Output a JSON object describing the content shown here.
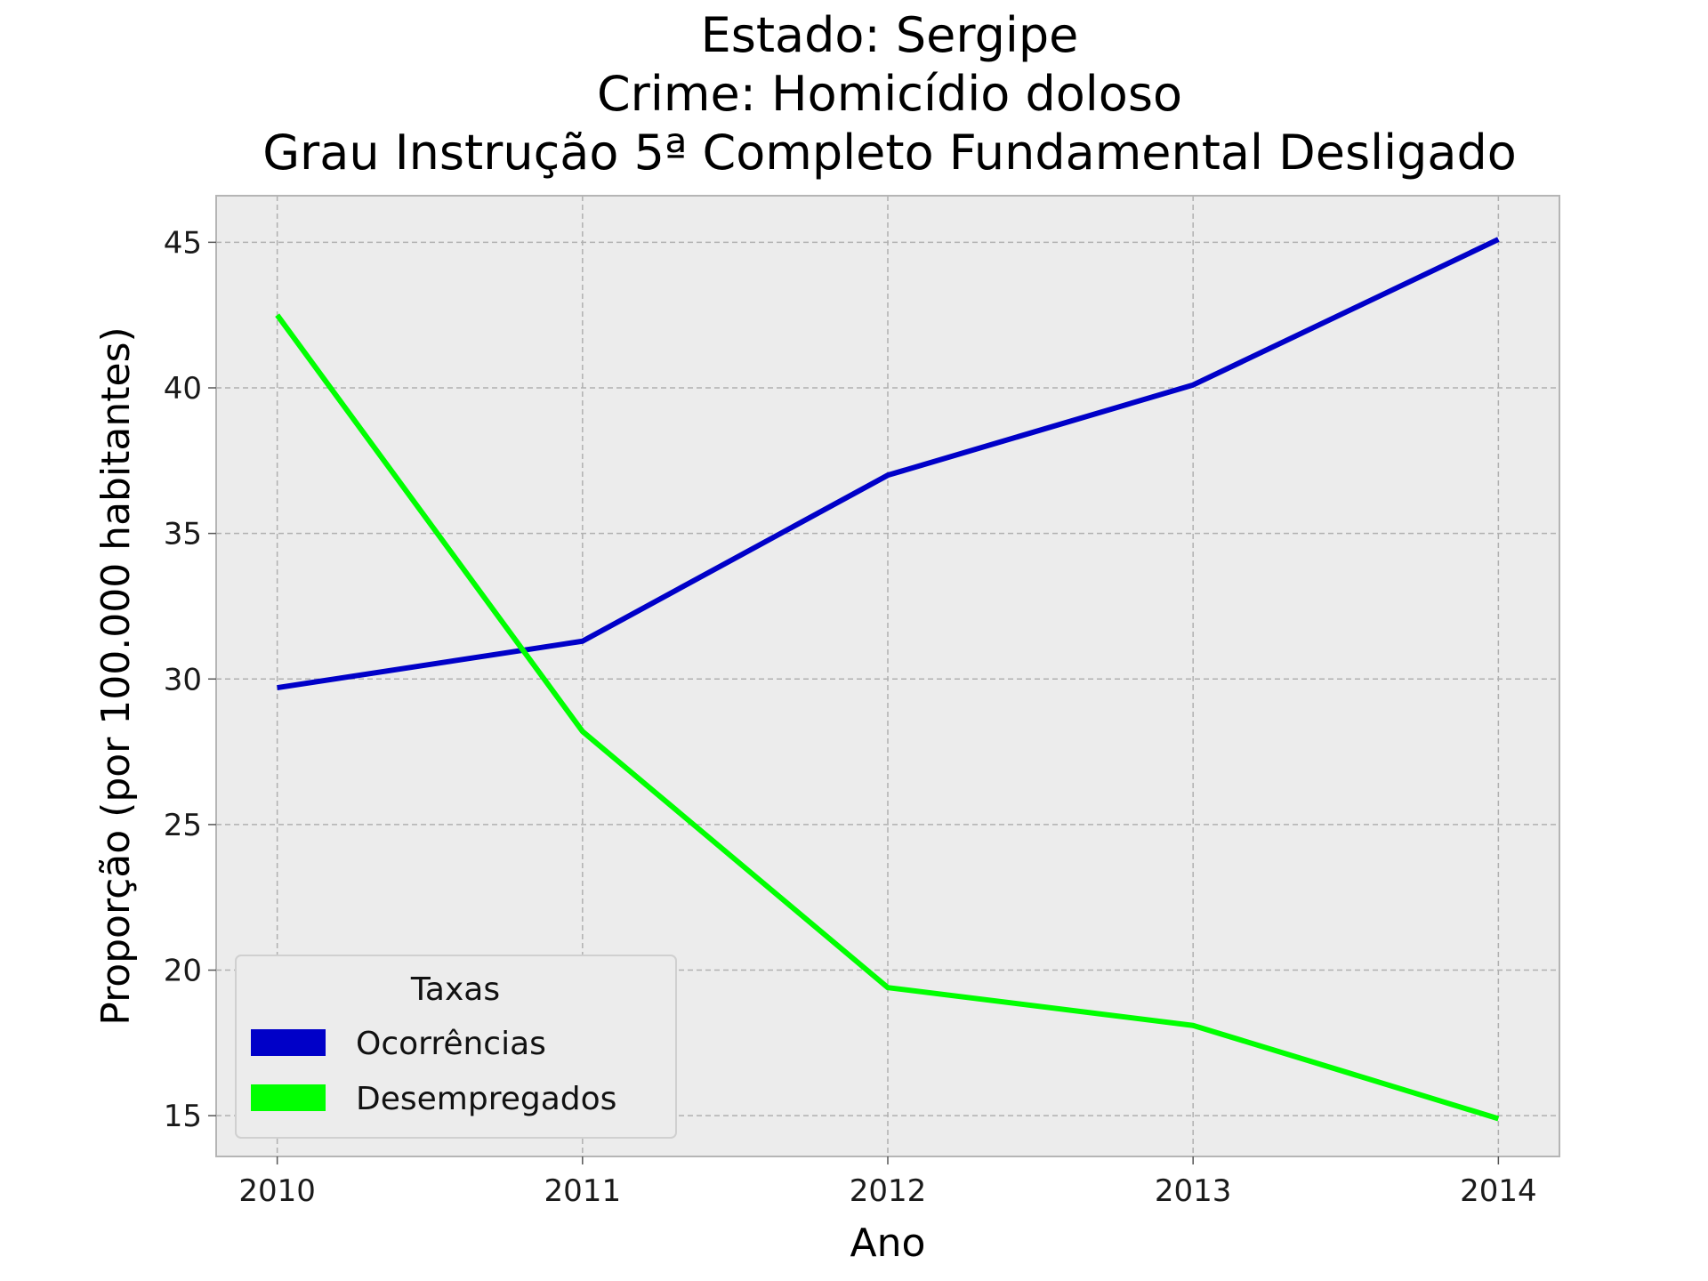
{
  "chart_data": {
    "type": "line",
    "title": [
      "Estado: Sergipe",
      "Crime: Homicídio doloso",
      "Grau Instrução  5ª Completo Fundamental   Desligado"
    ],
    "xlabel": "Ano",
    "ylabel": "Proporção (por 100.000 habitantes)",
    "x": [
      2010,
      2011,
      2012,
      2013,
      2014
    ],
    "xlim": [
      2009.8,
      2014.2
    ],
    "ylim": [
      13.6,
      46.6
    ],
    "xticks": [
      "2010",
      "2011",
      "2012",
      "2013",
      "2014"
    ],
    "yticks": [
      15,
      20,
      25,
      30,
      35,
      40,
      45
    ],
    "grid": true,
    "legend": {
      "title": "Taxas",
      "placement": "lower-left"
    },
    "series": [
      {
        "name": "Ocorrências",
        "color": "#0000c8",
        "values": [
          29.7,
          31.3,
          37.0,
          40.1,
          45.1
        ]
      },
      {
        "name": "Desempregados",
        "color": "#00ff00",
        "values": [
          42.5,
          28.2,
          19.4,
          18.1,
          14.9
        ]
      }
    ]
  },
  "colors": {
    "plot_background": "#ececec",
    "axes_edge": "#b5b5b5"
  }
}
